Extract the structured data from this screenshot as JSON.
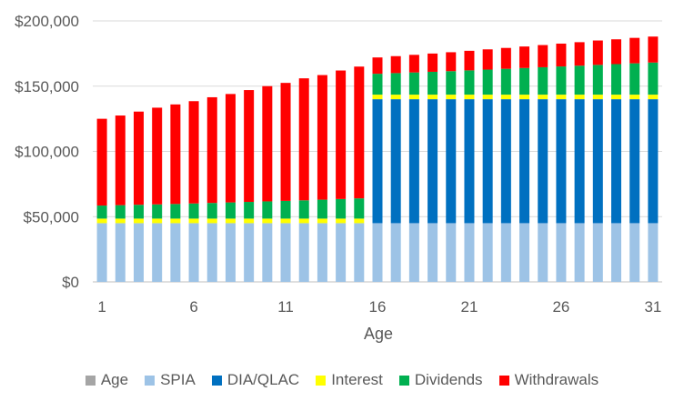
{
  "chart_data": {
    "type": "bar",
    "stacked": true,
    "xlabel": "Age",
    "ylabel": "",
    "title": "",
    "ylim": [
      0,
      200000
    ],
    "y_ticks": [
      0,
      50000,
      100000,
      150000,
      200000
    ],
    "y_tick_labels": [
      "$0",
      "$50,000",
      "$100,000",
      "$150,000",
      "$200,000"
    ],
    "x_tick_labels": [
      "1",
      "6",
      "11",
      "16",
      "21",
      "26",
      "31"
    ],
    "grid": "horizontal",
    "legend_position": "bottom",
    "categories": [
      1,
      2,
      3,
      4,
      5,
      6,
      7,
      8,
      9,
      10,
      11,
      12,
      13,
      14,
      15,
      16,
      17,
      18,
      19,
      20,
      21,
      22,
      23,
      24,
      25,
      26,
      27,
      28,
      29,
      30,
      31
    ],
    "series": [
      {
        "name": "Age",
        "color": "#A5A5A5",
        "values": [
          0,
          0,
          0,
          0,
          0,
          0,
          0,
          0,
          0,
          0,
          0,
          0,
          0,
          0,
          0,
          0,
          0,
          0,
          0,
          0,
          0,
          0,
          0,
          0,
          0,
          0,
          0,
          0,
          0,
          0,
          0
        ]
      },
      {
        "name": "SPIA",
        "color": "#9DC3E6",
        "values": [
          45000,
          45000,
          45000,
          45000,
          45000,
          45000,
          45000,
          45000,
          45000,
          45000,
          45000,
          45000,
          45000,
          45000,
          45000,
          45000,
          45000,
          45000,
          45000,
          45000,
          45000,
          45000,
          45000,
          45000,
          45000,
          45000,
          45000,
          45000,
          45000,
          45000,
          45000
        ]
      },
      {
        "name": "DIA/QLAC",
        "color": "#0070C0",
        "values": [
          0,
          0,
          0,
          0,
          0,
          0,
          0,
          0,
          0,
          0,
          0,
          0,
          0,
          0,
          0,
          95000,
          95000,
          95000,
          95000,
          95000,
          95000,
          95000,
          95000,
          95000,
          95000,
          95000,
          95000,
          95000,
          95000,
          95000,
          95000
        ]
      },
      {
        "name": "Interest",
        "color": "#FFFF00",
        "values": [
          3500,
          3500,
          3500,
          3500,
          3500,
          3500,
          3500,
          3500,
          3500,
          3500,
          3500,
          3500,
          3500,
          3500,
          3500,
          3500,
          3500,
          3500,
          3500,
          3500,
          3500,
          3500,
          3500,
          3500,
          3500,
          3500,
          3500,
          3500,
          3500,
          3500,
          3500
        ]
      },
      {
        "name": "Dividends",
        "color": "#00B050",
        "values": [
          10000,
          10300,
          10600,
          10900,
          11200,
          11600,
          12000,
          12400,
          12800,
          13200,
          13600,
          14000,
          14500,
          15000,
          15500,
          16000,
          16500,
          17000,
          17500,
          18000,
          18600,
          19200,
          19800,
          20400,
          21000,
          21600,
          22200,
          22800,
          23400,
          24000,
          24600
        ]
      },
      {
        "name": "Withdrawals",
        "color": "#FF0000",
        "values": [
          66500,
          68700,
          71400,
          74100,
          76300,
          78400,
          81000,
          83100,
          85700,
          88300,
          90400,
          93500,
          95500,
          98500,
          101000,
          12500,
          13000,
          13500,
          14000,
          14500,
          15000,
          15500,
          16000,
          16500,
          17000,
          17500,
          18000,
          18700,
          19000,
          19500,
          19900
        ]
      }
    ]
  }
}
